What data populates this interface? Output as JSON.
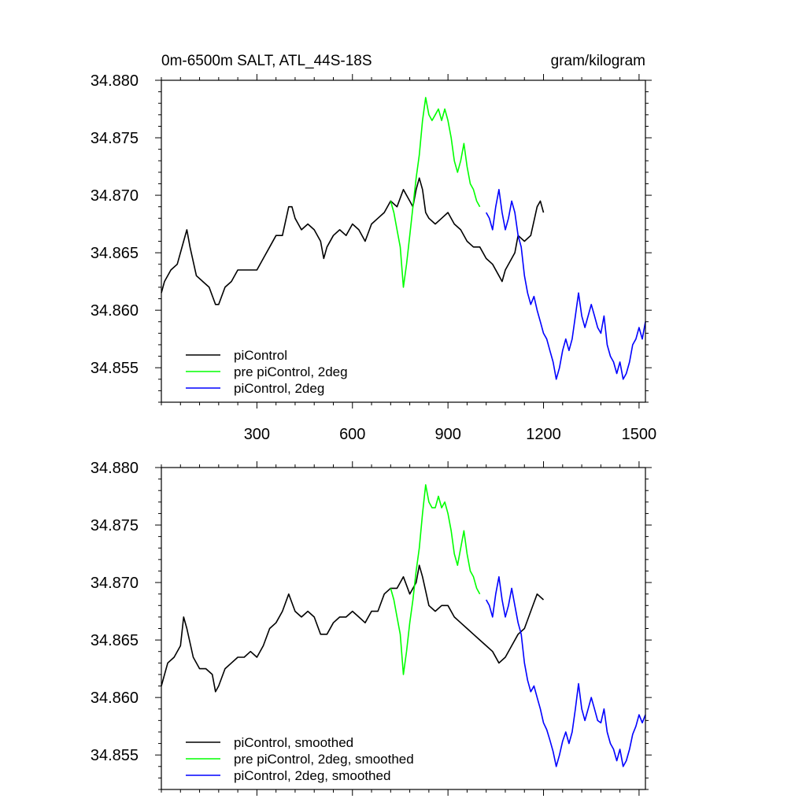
{
  "chart_data": [
    {
      "type": "line",
      "title": "0m-6500m SALT, ATL_44S-18S",
      "units": "gram/kilogram",
      "xlim": [
        0,
        1520
      ],
      "ylim": [
        34.852,
        34.88
      ],
      "x_ticks": [
        300,
        600,
        900,
        1200,
        1500
      ],
      "x_tick_labels": [
        "300",
        "600",
        "900",
        "1200",
        "1500"
      ],
      "y_ticks": [
        34.855,
        34.86,
        34.865,
        34.87,
        34.875,
        34.88
      ],
      "y_tick_labels": [
        "34.855",
        "34.860",
        "34.865",
        "34.870",
        "34.875",
        "34.880"
      ],
      "legend_position": "bottom-left",
      "series": [
        {
          "name": "piControl",
          "color": "#000000",
          "x": [
            0,
            10,
            30,
            50,
            70,
            80,
            90,
            110,
            130,
            150,
            170,
            180,
            200,
            220,
            240,
            260,
            280,
            300,
            320,
            340,
            360,
            380,
            400,
            410,
            420,
            440,
            460,
            480,
            500,
            510,
            520,
            540,
            560,
            580,
            600,
            620,
            640,
            660,
            680,
            700,
            720,
            740,
            760,
            780,
            790,
            800,
            810,
            820,
            830,
            840,
            860,
            880,
            900,
            920,
            940,
            960,
            980,
            1000,
            1020,
            1040,
            1060,
            1070,
            1080,
            1100,
            1110,
            1120,
            1140,
            1160,
            1180,
            1190,
            1200
          ],
          "y": [
            34.8615,
            34.8625,
            34.8635,
            34.864,
            34.866,
            34.867,
            34.8655,
            34.863,
            34.8625,
            34.862,
            34.8605,
            34.8605,
            34.862,
            34.8625,
            34.8635,
            34.8635,
            34.8635,
            34.8635,
            34.8645,
            34.8655,
            34.8665,
            34.8665,
            34.869,
            34.869,
            34.868,
            34.867,
            34.8675,
            34.867,
            34.866,
            34.8645,
            34.8655,
            34.8665,
            34.867,
            34.8665,
            34.8675,
            34.867,
            34.866,
            34.8675,
            34.868,
            34.8685,
            34.8695,
            34.869,
            34.8705,
            34.8695,
            34.869,
            34.8705,
            34.8715,
            34.8705,
            34.8685,
            34.868,
            34.8675,
            34.868,
            34.8685,
            34.8675,
            34.867,
            34.866,
            34.8655,
            34.8655,
            34.8645,
            34.864,
            34.863,
            34.8625,
            34.8635,
            34.8645,
            34.865,
            34.8665,
            34.866,
            34.8665,
            34.869,
            34.8695,
            34.8685
          ]
        },
        {
          "name": "pre piControl, 2deg",
          "color": "#00ff00",
          "x": [
            720,
            730,
            740,
            750,
            760,
            770,
            780,
            790,
            800,
            810,
            820,
            830,
            840,
            850,
            860,
            870,
            880,
            890,
            900,
            910,
            920,
            930,
            940,
            950,
            960,
            970,
            980,
            990,
            1000
          ],
          "y": [
            34.8695,
            34.8685,
            34.867,
            34.8655,
            34.862,
            34.864,
            34.8665,
            34.869,
            34.8715,
            34.8735,
            34.8765,
            34.8785,
            34.877,
            34.8765,
            34.877,
            34.8775,
            34.8765,
            34.8775,
            34.8765,
            34.875,
            34.873,
            34.872,
            34.873,
            34.8745,
            34.8725,
            34.871,
            34.8705,
            34.8695,
            34.869
          ]
        },
        {
          "name": "piControl, 2deg",
          "color": "#0000ff",
          "x": [
            1020,
            1030,
            1040,
            1050,
            1060,
            1070,
            1080,
            1090,
            1100,
            1110,
            1120,
            1130,
            1140,
            1150,
            1160,
            1170,
            1180,
            1190,
            1200,
            1210,
            1220,
            1230,
            1240,
            1250,
            1260,
            1270,
            1280,
            1290,
            1300,
            1310,
            1320,
            1330,
            1340,
            1350,
            1360,
            1370,
            1380,
            1390,
            1400,
            1410,
            1420,
            1430,
            1440,
            1450,
            1460,
            1470,
            1480,
            1490,
            1500,
            1510,
            1520
          ],
          "y": [
            34.8685,
            34.868,
            34.867,
            34.869,
            34.8705,
            34.8685,
            34.867,
            34.868,
            34.8695,
            34.8685,
            34.8665,
            34.8655,
            34.863,
            34.8615,
            34.8605,
            34.8612,
            34.86,
            34.859,
            34.858,
            34.8575,
            34.8565,
            34.8555,
            34.854,
            34.855,
            34.8565,
            34.8575,
            34.8565,
            34.8575,
            34.8595,
            34.8615,
            34.8595,
            34.8585,
            34.8595,
            34.8605,
            34.8595,
            34.8585,
            34.858,
            34.8595,
            34.857,
            34.856,
            34.8555,
            34.8545,
            34.8555,
            34.854,
            34.8545,
            34.8555,
            34.857,
            34.8575,
            34.8585,
            34.8575,
            34.859
          ]
        }
      ]
    },
    {
      "type": "line",
      "title": "",
      "xlim": [
        0,
        1520
      ],
      "ylim": [
        34.852,
        34.88
      ],
      "x_ticks": [
        300,
        600,
        900,
        1200,
        1500
      ],
      "y_ticks": [
        34.855,
        34.86,
        34.865,
        34.87,
        34.875,
        34.88
      ],
      "y_tick_labels": [
        "34.855",
        "34.860",
        "34.865",
        "34.870",
        "34.875",
        "34.880"
      ],
      "legend_position": "bottom-left",
      "series": [
        {
          "name": "piControl, smoothed",
          "color": "#000000",
          "x": [
            0,
            20,
            40,
            60,
            70,
            80,
            100,
            120,
            140,
            160,
            170,
            180,
            200,
            220,
            240,
            260,
            280,
            300,
            320,
            340,
            360,
            380,
            400,
            420,
            440,
            460,
            480,
            500,
            520,
            540,
            560,
            580,
            600,
            620,
            640,
            660,
            680,
            700,
            720,
            740,
            760,
            780,
            800,
            810,
            820,
            840,
            860,
            880,
            900,
            920,
            940,
            960,
            980,
            1000,
            1020,
            1040,
            1060,
            1080,
            1100,
            1120,
            1140,
            1160,
            1180,
            1200
          ],
          "y": [
            34.861,
            34.863,
            34.8635,
            34.8645,
            34.867,
            34.866,
            34.8635,
            34.8625,
            34.8625,
            34.862,
            34.8605,
            34.861,
            34.8625,
            34.863,
            34.8635,
            34.8635,
            34.864,
            34.8635,
            34.8645,
            34.866,
            34.8665,
            34.8675,
            34.869,
            34.8675,
            34.867,
            34.8675,
            34.867,
            34.8655,
            34.8655,
            34.8665,
            34.867,
            34.867,
            34.8675,
            34.867,
            34.8665,
            34.8675,
            34.8675,
            34.869,
            34.8695,
            34.8695,
            34.8705,
            34.869,
            34.87,
            34.8715,
            34.8705,
            34.868,
            34.8675,
            34.868,
            34.868,
            34.867,
            34.8665,
            34.866,
            34.8655,
            34.865,
            34.8645,
            34.864,
            34.863,
            34.8635,
            34.8645,
            34.8655,
            34.866,
            34.8675,
            34.869,
            34.8685
          ]
        },
        {
          "name": "pre piControl, 2deg, smoothed",
          "color": "#00ff00",
          "x": [
            720,
            730,
            740,
            750,
            760,
            770,
            780,
            790,
            800,
            810,
            820,
            830,
            840,
            850,
            860,
            870,
            880,
            890,
            900,
            910,
            920,
            930,
            940,
            950,
            960,
            970,
            980,
            990,
            1000
          ],
          "y": [
            34.8695,
            34.8685,
            34.867,
            34.8655,
            34.862,
            34.864,
            34.8665,
            34.8685,
            34.871,
            34.873,
            34.876,
            34.8785,
            34.877,
            34.8765,
            34.8765,
            34.8775,
            34.8765,
            34.877,
            34.876,
            34.8745,
            34.8725,
            34.8715,
            34.873,
            34.8745,
            34.8725,
            34.871,
            34.8705,
            34.8695,
            34.869
          ]
        },
        {
          "name": "piControl, 2deg, smoothed",
          "color": "#0000ff",
          "x": [
            1020,
            1030,
            1040,
            1050,
            1060,
            1070,
            1080,
            1090,
            1100,
            1110,
            1120,
            1130,
            1140,
            1150,
            1160,
            1170,
            1180,
            1190,
            1200,
            1210,
            1220,
            1230,
            1240,
            1250,
            1260,
            1270,
            1280,
            1290,
            1300,
            1310,
            1320,
            1330,
            1340,
            1350,
            1360,
            1370,
            1380,
            1390,
            1400,
            1410,
            1420,
            1430,
            1440,
            1450,
            1460,
            1470,
            1480,
            1490,
            1500,
            1510,
            1520
          ],
          "y": [
            34.8685,
            34.868,
            34.867,
            34.869,
            34.8705,
            34.8685,
            34.867,
            34.868,
            34.8695,
            34.868,
            34.8665,
            34.8655,
            34.863,
            34.8615,
            34.8605,
            34.861,
            34.86,
            34.859,
            34.8578,
            34.8572,
            34.8563,
            34.8553,
            34.854,
            34.855,
            34.8562,
            34.857,
            34.856,
            34.857,
            34.859,
            34.8612,
            34.859,
            34.858,
            34.859,
            34.86,
            34.859,
            34.858,
            34.8578,
            34.859,
            34.857,
            34.856,
            34.8555,
            34.8545,
            34.8555,
            34.854,
            34.8545,
            34.8555,
            34.8568,
            34.8575,
            34.8585,
            34.8578,
            34.8585
          ]
        }
      ]
    }
  ]
}
